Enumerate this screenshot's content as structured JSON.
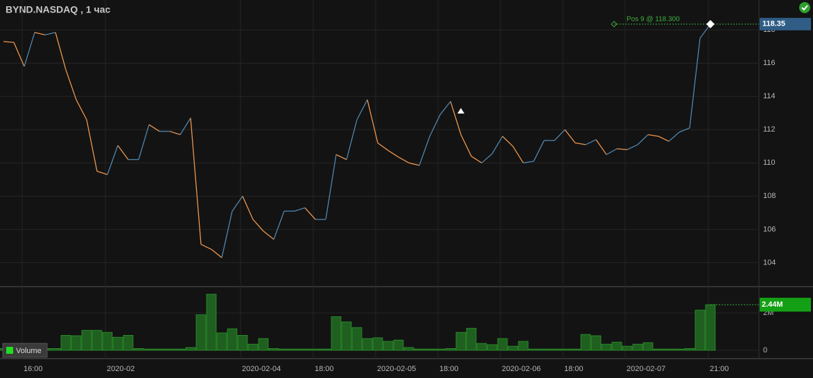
{
  "title": "BYND.NASDAQ , 1 час",
  "chart_data": [
    {
      "type": "line",
      "categories": [
        null,
        null,
        "16:00",
        null,
        null,
        null,
        null,
        null,
        null,
        null,
        "2020-02",
        null,
        null,
        null,
        null,
        null,
        null,
        null,
        null,
        null,
        null,
        null,
        null,
        "2020-02-04",
        null,
        null,
        null,
        null,
        null,
        null,
        "18:00",
        null,
        null,
        null,
        null,
        null,
        "2020-02-05",
        null,
        null,
        null,
        null,
        null,
        "18:00",
        null,
        null,
        null,
        null,
        null,
        "2020-02-06",
        null,
        null,
        null,
        null,
        null,
        "18:00",
        null,
        null,
        null,
        null,
        null,
        "2020-02-07",
        null,
        null,
        null,
        null,
        null,
        null,
        null,
        "21:00"
      ],
      "values": [
        117.3,
        117.25,
        115.8,
        117.85,
        117.7,
        117.85,
        115.6,
        113.8,
        112.6,
        109.5,
        109.3,
        111.05,
        110.2,
        110.2,
        112.3,
        111.9,
        111.9,
        111.7,
        112.7,
        105.1,
        104.8,
        104.3,
        107.1,
        108.0,
        106.6,
        105.9,
        105.4,
        107.1,
        107.1,
        107.3,
        106.6,
        106.6,
        110.5,
        110.2,
        112.6,
        113.8,
        111.2,
        110.75,
        110.35,
        110.0,
        109.85,
        111.6,
        112.9,
        113.7,
        111.7,
        110.4,
        110.0,
        110.55,
        111.6,
        111.0,
        110.0,
        110.1,
        111.35,
        111.35,
        112.0,
        111.2,
        111.1,
        111.4,
        110.5,
        110.85,
        110.8,
        111.1,
        111.7,
        111.6,
        111.3,
        111.85,
        112.1,
        117.5,
        118.35
      ],
      "up_color": "#4f86b0",
      "down_color": "#f0964c",
      "ylim": [
        102.6,
        119.8
      ],
      "yticks": [
        104,
        106,
        108,
        110,
        112,
        114,
        116,
        118
      ],
      "grid": true,
      "annotation": "Pos 9 @ 118.300"
    },
    {
      "type": "bar",
      "legend": "Volume",
      "color": "#1f5f1f",
      "edge_color": "#33b533",
      "values": [
        100000,
        100000,
        100000,
        100000,
        100000,
        100000,
        800000,
        780000,
        1070000,
        1070000,
        960000,
        700000,
        800000,
        100000,
        70000,
        70000,
        70000,
        70000,
        150000,
        1900000,
        3000000,
        930000,
        1150000,
        800000,
        330000,
        630000,
        100000,
        70000,
        70000,
        70000,
        70000,
        70000,
        1800000,
        1520000,
        1220000,
        630000,
        670000,
        480000,
        550000,
        150000,
        70000,
        70000,
        70000,
        100000,
        960000,
        1180000,
        370000,
        300000,
        630000,
        220000,
        480000,
        70000,
        70000,
        70000,
        70000,
        70000,
        850000,
        780000,
        330000,
        440000,
        220000,
        330000,
        410000,
        70000,
        70000,
        70000,
        100000,
        2150000,
        2440000
      ],
      "last_value_label": "2.44M",
      "ylim": [
        0,
        3370000
      ],
      "yticks": [
        0,
        {
          "value": 2000000,
          "label": "2M"
        }
      ],
      "grid": true
    }
  ]
}
